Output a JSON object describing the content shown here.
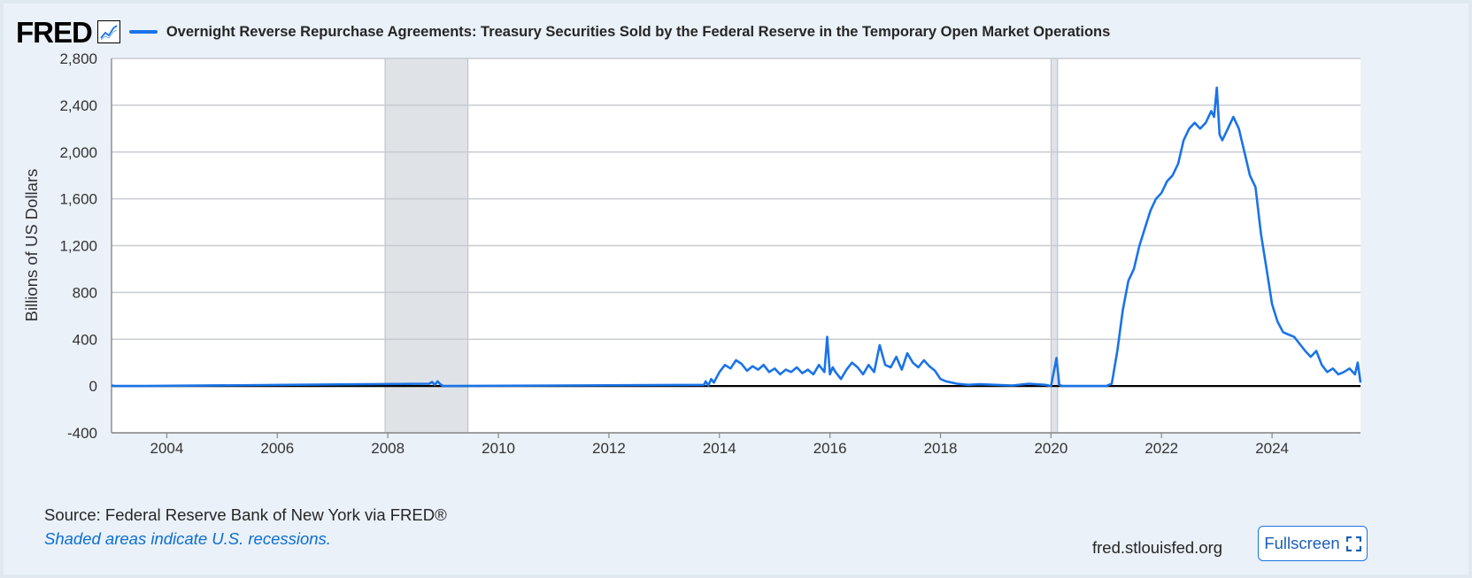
{
  "header": {
    "logo_text": "FRED",
    "graph_icon": "line-chart-icon",
    "series_title": "Overnight Reverse Repurchase Agreements: Treasury Securities Sold by the Federal Reserve in the Temporary Open Market Operations"
  },
  "footer": {
    "source": "Source: Federal Reserve Bank of New York via FRED®",
    "recession_note": "Shaded areas indicate U.S. recessions.",
    "site": "fred.stlouisfed.org",
    "fullscreen_label": "Fullscreen",
    "fullscreen_icon": "fullscreen-icon"
  },
  "colors": {
    "series": "#1a73e8",
    "recession": "#dfe3e8",
    "background": "#eaf1f8",
    "plot_bg": "#ffffff"
  },
  "chart_data": {
    "type": "line",
    "title": "Overnight Reverse Repurchase Agreements: Treasury Securities Sold by the Federal Reserve in the Temporary Open Market Operations",
    "ylabel": "Billions of US Dollars",
    "xlabel": "",
    "xlim": [
      2003.0,
      2025.6
    ],
    "ylim": [
      -400,
      2800
    ],
    "x_ticks": [
      2004,
      2006,
      2008,
      2010,
      2012,
      2014,
      2016,
      2018,
      2020,
      2022,
      2024
    ],
    "x_tick_labels": [
      "2004",
      "2006",
      "2008",
      "2010",
      "2012",
      "2014",
      "2016",
      "2018",
      "2020",
      "2022",
      "2024"
    ],
    "y_ticks": [
      -400,
      0,
      400,
      800,
      1200,
      1600,
      2000,
      2400,
      2800
    ],
    "y_tick_labels": [
      "-400",
      "0",
      "400",
      "800",
      "1,200",
      "1,600",
      "2,000",
      "2,400",
      "2,800"
    ],
    "grid": true,
    "recessions": [
      [
        2007.95,
        2009.45
      ],
      [
        2020.0,
        2020.12
      ]
    ],
    "series": [
      {
        "x": [
          2003.0,
          2003.05,
          2003.1,
          2003.2,
          2003.4,
          2003.6,
          2008.75,
          2008.8,
          2008.85,
          2008.9,
          2008.95,
          2009.0,
          2013.72,
          2013.75,
          2013.8,
          2013.85,
          2013.9,
          2014.0,
          2014.1,
          2014.2,
          2014.3,
          2014.4,
          2014.5,
          2014.6,
          2014.7,
          2014.8,
          2014.9,
          2015.0,
          2015.1,
          2015.2,
          2015.3,
          2015.4,
          2015.5,
          2015.6,
          2015.7,
          2015.8,
          2015.9,
          2015.95,
          2016.0,
          2016.05,
          2016.1,
          2016.2,
          2016.3,
          2016.4,
          2016.5,
          2016.6,
          2016.7,
          2016.8,
          2016.9,
          2017.0,
          2017.1,
          2017.2,
          2017.3,
          2017.4,
          2017.5,
          2017.6,
          2017.7,
          2017.8,
          2017.9,
          2018.0,
          2018.1,
          2018.3,
          2018.5,
          2018.7,
          2019.0,
          2019.3,
          2019.6,
          2019.9,
          2020.0,
          2020.1,
          2020.15,
          2020.2,
          2020.3,
          2020.5,
          2020.8,
          2021.0,
          2021.1,
          2021.2,
          2021.3,
          2021.4,
          2021.5,
          2021.6,
          2021.7,
          2021.8,
          2021.9,
          2022.0,
          2022.1,
          2022.2,
          2022.3,
          2022.4,
          2022.5,
          2022.6,
          2022.7,
          2022.8,
          2022.9,
          2022.95,
          2023.0,
          2023.05,
          2023.1,
          2023.2,
          2023.3,
          2023.4,
          2023.5,
          2023.6,
          2023.7,
          2023.8,
          2023.9,
          2024.0,
          2024.1,
          2024.2,
          2024.3,
          2024.4,
          2024.5,
          2024.6,
          2024.7,
          2024.8,
          2024.9,
          2025.0,
          2025.1,
          2025.2,
          2025.3,
          2025.4,
          2025.5,
          2025.55,
          2025.6
        ],
        "y": [
          5,
          2,
          0,
          0,
          0,
          0,
          20,
          35,
          10,
          40,
          15,
          0,
          10,
          40,
          5,
          60,
          30,
          120,
          180,
          150,
          220,
          190,
          130,
          170,
          140,
          180,
          120,
          150,
          100,
          140,
          120,
          160,
          110,
          140,
          100,
          180,
          120,
          420,
          100,
          160,
          120,
          60,
          140,
          200,
          160,
          100,
          180,
          120,
          350,
          180,
          160,
          250,
          140,
          280,
          200,
          160,
          220,
          170,
          130,
          60,
          40,
          20,
          10,
          15,
          10,
          5,
          20,
          10,
          0,
          240,
          10,
          0,
          0,
          0,
          0,
          0,
          20,
          300,
          650,
          900,
          1000,
          1200,
          1350,
          1500,
          1600,
          1650,
          1750,
          1800,
          1900,
          2100,
          2200,
          2250,
          2200,
          2250,
          2350,
          2300,
          2550,
          2150,
          2100,
          2200,
          2300,
          2200,
          2000,
          1800,
          1700,
          1300,
          1000,
          700,
          550,
          460,
          440,
          420,
          360,
          300,
          250,
          300,
          180,
          120,
          150,
          100,
          120,
          150,
          100,
          200,
          30
        ]
      }
    ]
  }
}
